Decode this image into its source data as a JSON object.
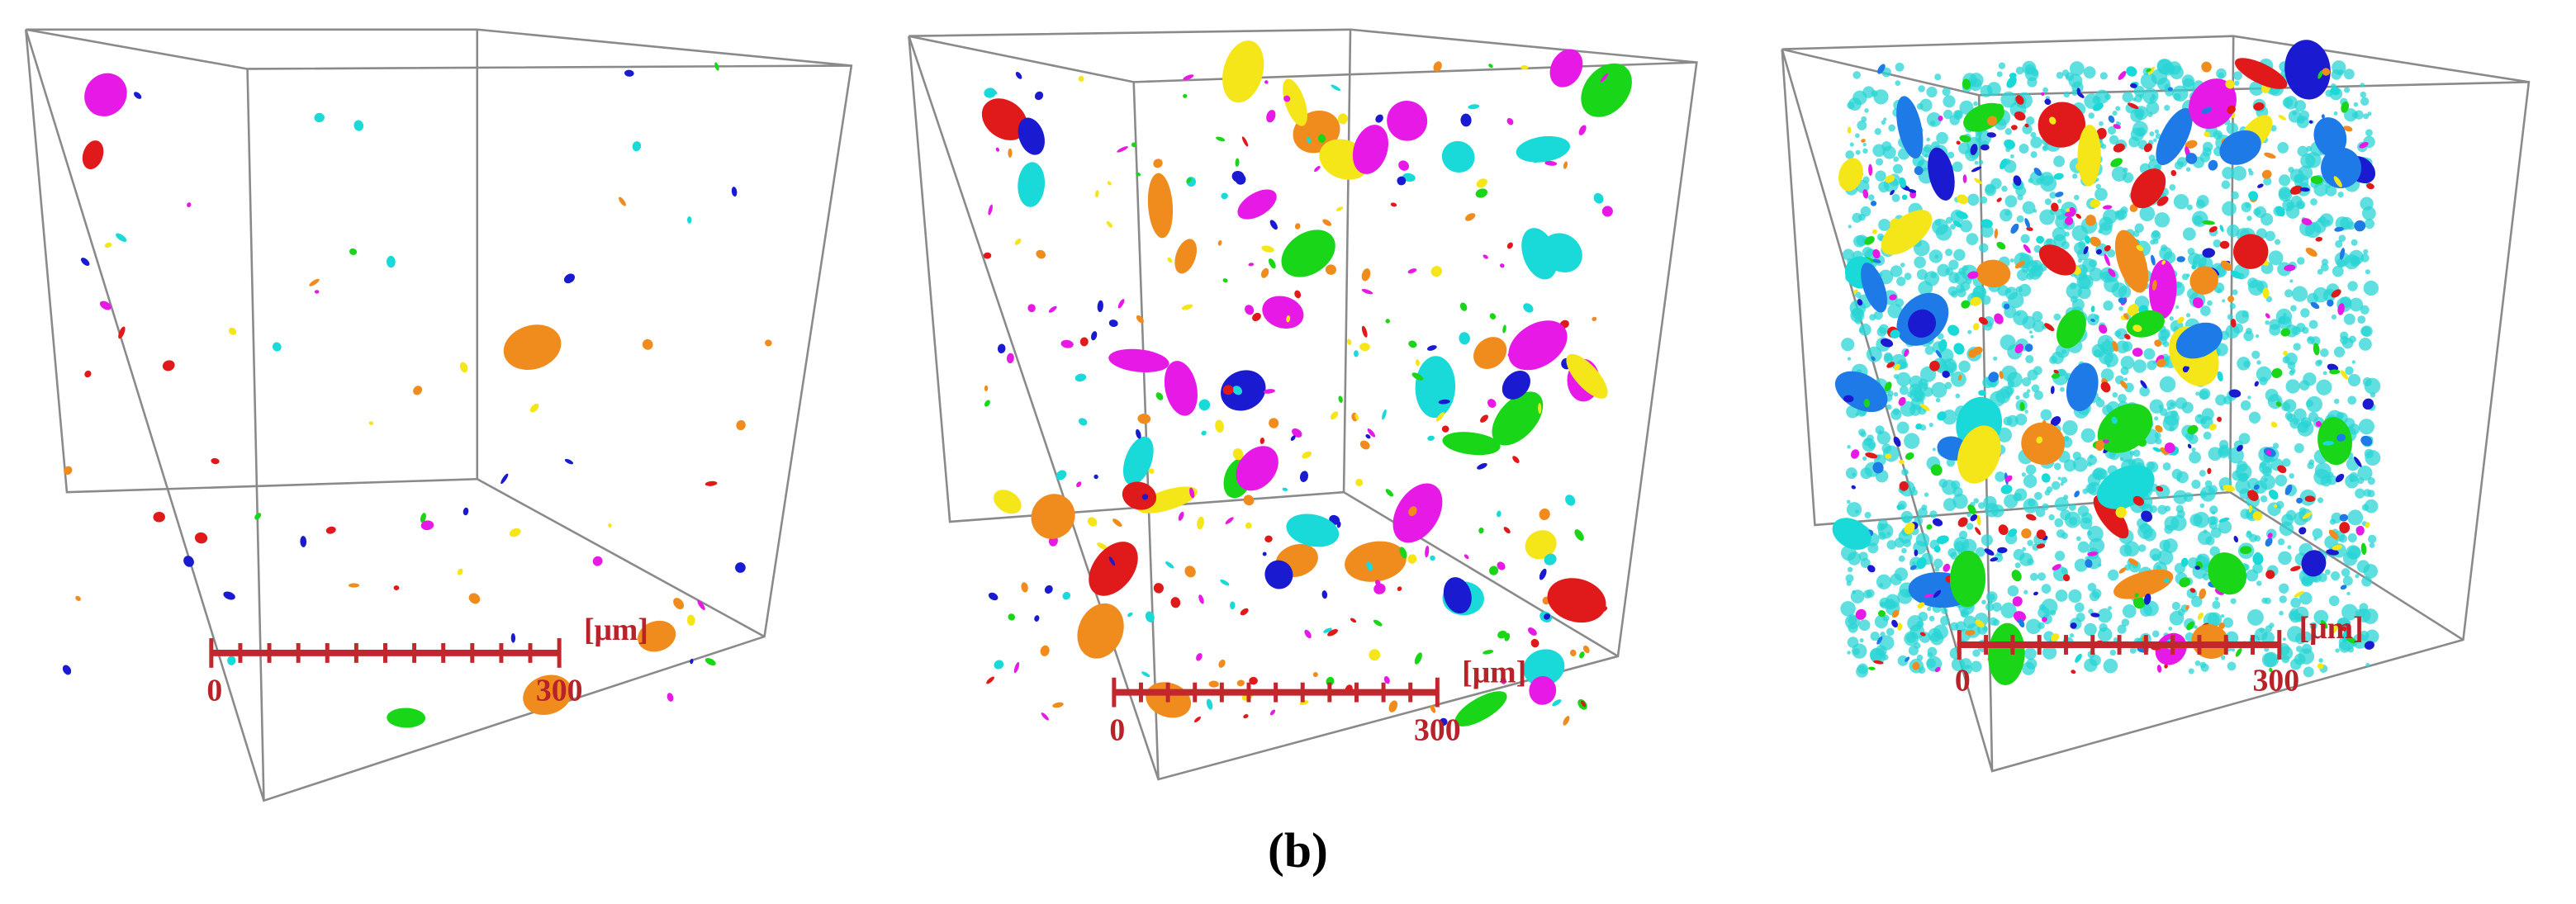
{
  "panels": [
    {
      "scale_start": 0,
      "scale_end": 300,
      "unit": "[μm]"
    },
    {
      "scale_start": 0,
      "scale_end": 300,
      "unit": "[μm]"
    },
    {
      "scale_start": 0,
      "scale_end": 300,
      "unit": "[μm]"
    }
  ],
  "caption": "(b)"
}
